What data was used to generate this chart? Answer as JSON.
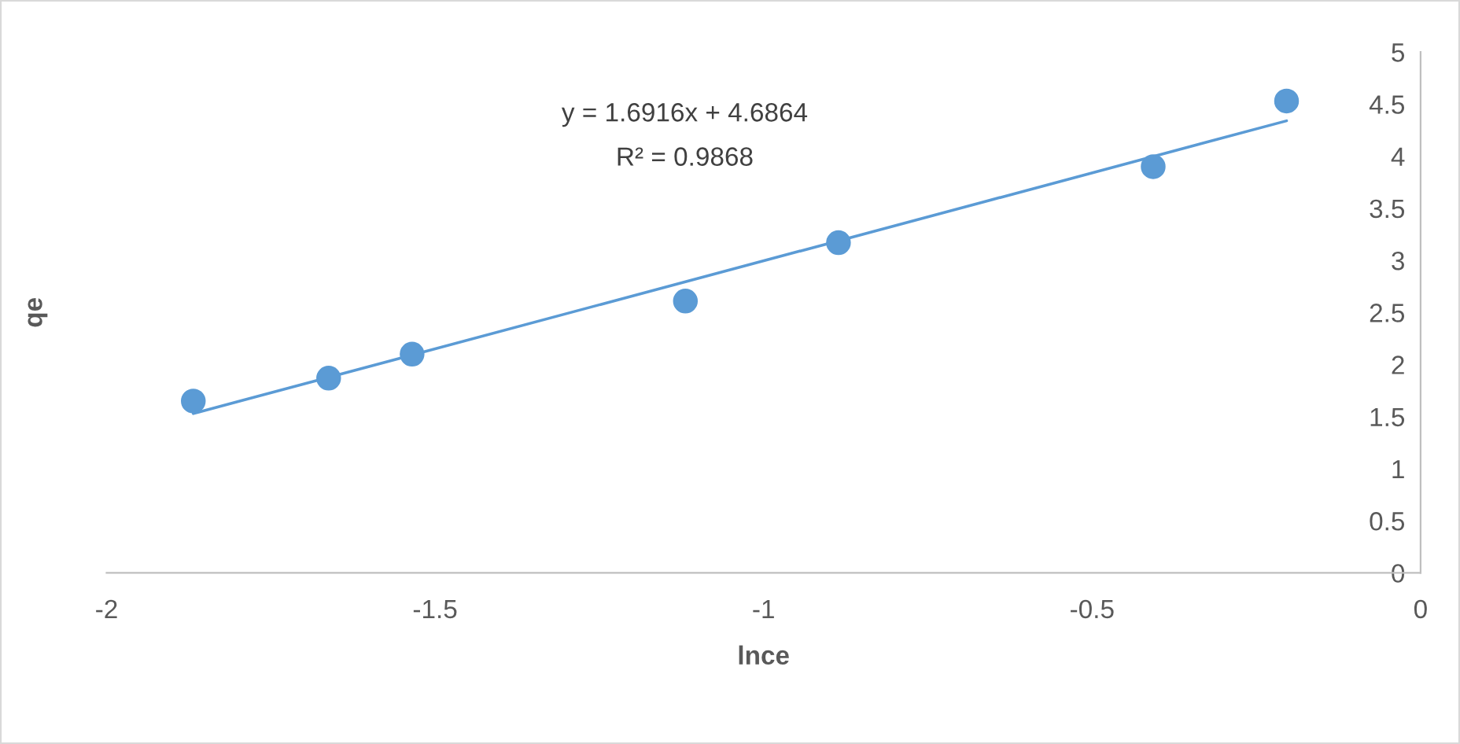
{
  "chart_data": {
    "type": "scatter",
    "xlabel": "lnce",
    "ylabel": "qe",
    "annotations": [
      "y = 1.6916x + 4.6864",
      "R² = 0.9868"
    ],
    "series": [
      {
        "color": "#5b9bd5",
        "marker": "circle",
        "x": [
          -1.868,
          -1.662,
          -1.535,
          -1.119,
          -0.886,
          -0.407,
          -0.204
        ],
        "values": [
          1.65,
          1.87,
          2.1,
          2.61,
          3.17,
          3.9,
          4.53
        ]
      },
      {
        "type": "line",
        "color": "#5b9bd5",
        "x": [
          -1.868,
          -0.204
        ],
        "values": [
          1.53,
          4.34
        ],
        "marker": "none"
      }
    ],
    "xlim": [
      -2,
      0
    ],
    "ylim": [
      0,
      5
    ],
    "xticks": [
      -2,
      -1.5,
      -1,
      -0.5,
      0
    ],
    "yticks": [
      0,
      0.5,
      1,
      1.5,
      2,
      2.5,
      3,
      3.5,
      4,
      4.5,
      5
    ],
    "grid": false,
    "legend": false
  }
}
